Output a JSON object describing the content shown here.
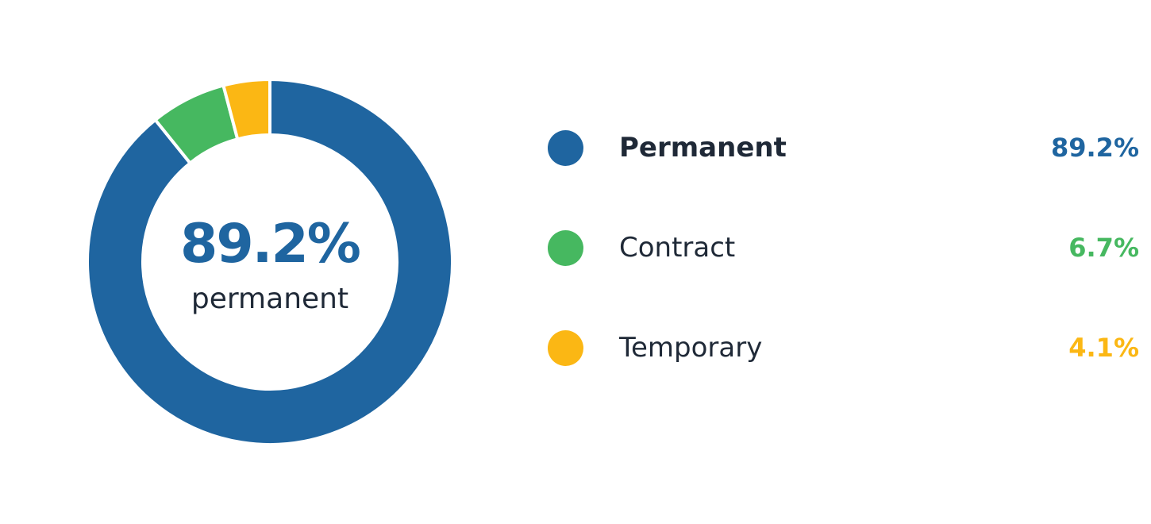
{
  "chart_data": {
    "type": "pie",
    "style": "donut",
    "title": "",
    "center": {
      "value": "89.2%",
      "caption": "permanent"
    },
    "slices": [
      {
        "label": "Permanent",
        "value": 89.2,
        "display": "89.2%",
        "color": "#1f65a0"
      },
      {
        "label": "Contract",
        "value": 6.7,
        "display": "6.7%",
        "color": "#46b860"
      },
      {
        "label": "Temporary",
        "value": 4.1,
        "display": "4.1%",
        "color": "#fbb714"
      }
    ],
    "legend_position": "right",
    "highlighted": "Permanent"
  }
}
